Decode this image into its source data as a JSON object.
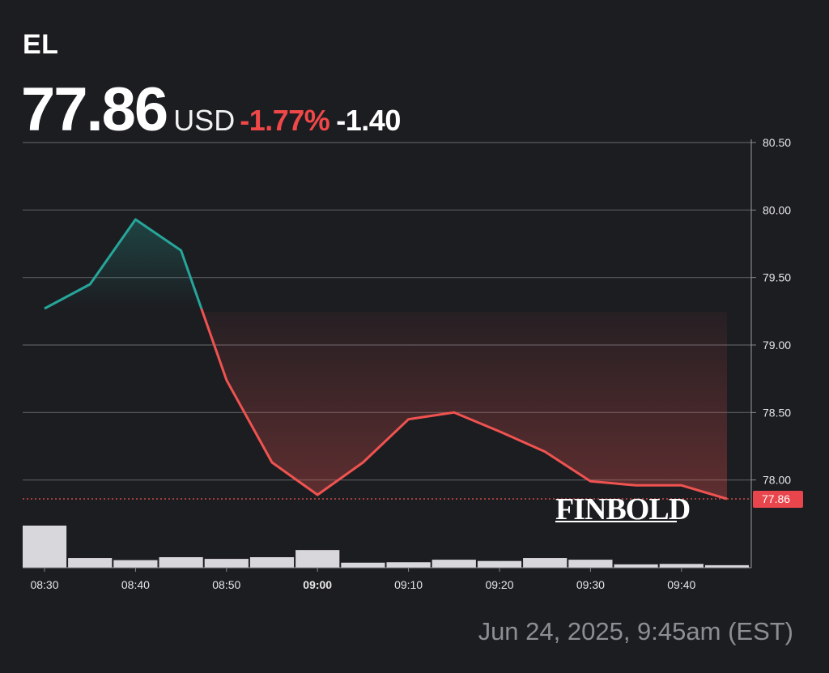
{
  "header": {
    "ticker": "EL",
    "price": "77.86",
    "currency": "USD",
    "change_percent": "-1.77%",
    "change_abs": "-1.40"
  },
  "watermark": "FINBOLD",
  "timestamp": "Jun 24, 2025, 9:45am (EST)",
  "colors": {
    "background": "#1c1d21",
    "up": "#26a69a",
    "down": "#ef5350",
    "negative_text": "#f04848",
    "volume": "#d8d8dc",
    "grid": "#5a5b60",
    "last_price_badge": "#e8464c"
  },
  "chart_data": {
    "type": "line",
    "x": [
      "08:30",
      "08:35",
      "08:40",
      "08:45",
      "08:50",
      "08:55",
      "09:00",
      "09:05",
      "09:10",
      "09:15",
      "09:20",
      "09:25",
      "09:30",
      "09:35",
      "09:40",
      "09:45"
    ],
    "y": [
      79.27,
      79.45,
      79.93,
      79.7,
      78.74,
      78.13,
      77.89,
      78.13,
      78.45,
      78.5,
      78.36,
      78.21,
      77.99,
      77.96,
      77.96,
      77.86
    ],
    "color_change_at": 79.27,
    "volume": [
      10,
      2.3,
      1.8,
      2.5,
      2.1,
      2.5,
      4.2,
      1.2,
      1.3,
      1.9,
      1.6,
      2.3,
      1.9,
      0.8,
      0.9,
      0.6
    ],
    "xticks": [
      "08:30",
      "08:40",
      "08:50",
      "09:00",
      "09:10",
      "09:20",
      "09:30",
      "09:40"
    ],
    "xtick_bold": "09:00",
    "yticks": [
      "80.50",
      "80.00",
      "79.50",
      "79.00",
      "78.50",
      "78.00"
    ],
    "ylim": [
      77.35,
      80.5
    ],
    "last_price_label": "77.86",
    "grid": "horizontal",
    "y_axis_position": "right"
  }
}
